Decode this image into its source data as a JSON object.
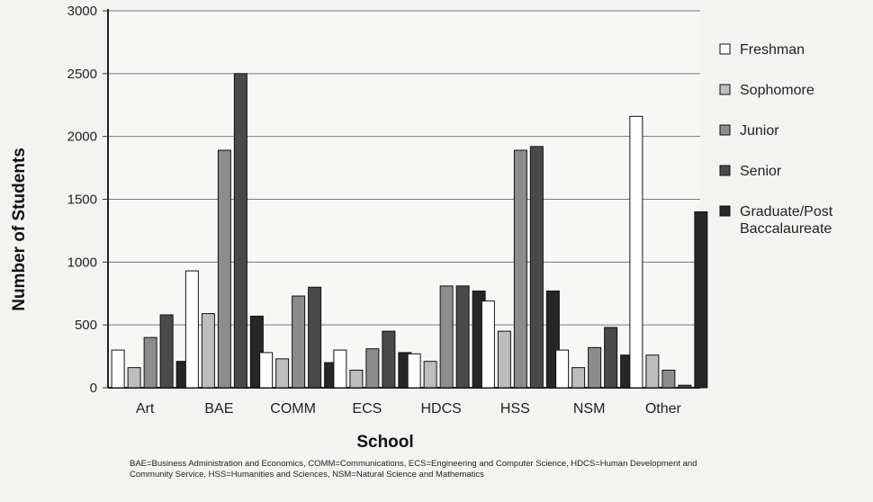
{
  "chart_data": {
    "type": "bar",
    "title": "",
    "xlabel": "School",
    "ylabel": "Number of Students",
    "ylim": [
      0,
      3000
    ],
    "yticks": [
      0,
      500,
      1000,
      1500,
      2000,
      2500,
      3000
    ],
    "grid": true,
    "legend_position": "right",
    "categories": [
      "Art",
      "BAE",
      "COMM",
      "ECS",
      "HDCS",
      "HSS",
      "NSM",
      "Other"
    ],
    "series": [
      {
        "name": "Freshman",
        "color": "#ffffff",
        "values": [
          300,
          930,
          280,
          300,
          270,
          690,
          300,
          2160
        ]
      },
      {
        "name": "Sophomore",
        "color": "#bdbdbd",
        "values": [
          160,
          590,
          230,
          140,
          210,
          450,
          160,
          260
        ]
      },
      {
        "name": "Junior",
        "color": "#8c8c8c",
        "values": [
          400,
          1890,
          730,
          310,
          810,
          1890,
          320,
          140
        ]
      },
      {
        "name": "Senior",
        "color": "#4a4a4a",
        "values": [
          580,
          2500,
          800,
          450,
          810,
          1920,
          480,
          20
        ]
      },
      {
        "name": "Graduate/Post Baccalaureate",
        "color": "#262626",
        "values": [
          210,
          570,
          200,
          280,
          770,
          770,
          260,
          1400
        ]
      }
    ],
    "footnote": "BAE=Business Administration and Economics, COMM=Communications, ECS=Engineering and Computer Science, HDCS=Human Development and Community Service, HSS=Humanities and Sciences, NSM=Natural Science and Mathematics"
  }
}
